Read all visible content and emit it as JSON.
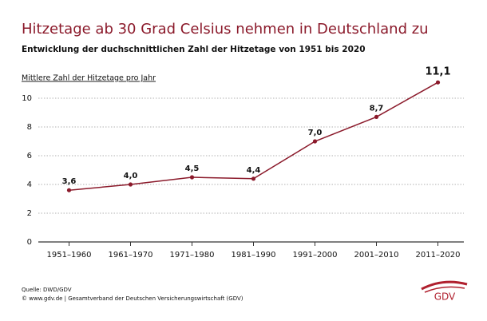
{
  "chart_data": {
    "type": "line",
    "title": "Hitzetage ab 30 Grad Celsius nehmen in Deutschland zu",
    "subtitle": "Entwicklung der duchschnittlichen Zahl der Hitzetage von 1951 bis 2020",
    "y_label": "Mittlere Zahl der Hitzetage pro Jahr",
    "categories": [
      "1951–1960",
      "1961–1970",
      "1971–1980",
      "1981–1990",
      "1991–2000",
      "2001–2010",
      "2011–2020"
    ],
    "values": [
      3.6,
      4.0,
      4.5,
      4.4,
      7.0,
      8.7,
      11.1
    ],
    "value_labels": [
      "3,6",
      "4,0",
      "4,5",
      "4,4",
      "7,0",
      "8,7",
      "11,1"
    ],
    "color": "#8b1a2b",
    "ylim": [
      0,
      12
    ],
    "yticks": [
      0,
      2,
      4,
      6,
      8,
      10
    ],
    "grid": true,
    "source": "Quelle: DWD/GDV",
    "copyright": "© www.gdv.de | Gesamtverband der Deutschen Versicherungswirtschaft (GDV)",
    "logo": "GDV"
  }
}
